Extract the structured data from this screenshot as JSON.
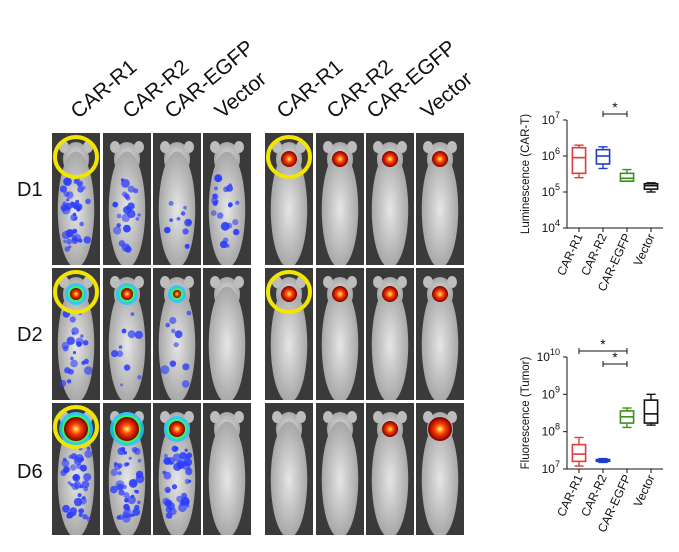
{
  "figure": {
    "left_panel": {
      "column_labels": [
        "CAR-R1",
        "CAR-R2",
        "CAR-EGFP",
        "Vector"
      ],
      "row_labels": [
        "D1",
        "D2",
        "D6"
      ]
    },
    "right_panel": {
      "column_labels": [
        "CAR-R1",
        "CAR-R2",
        "CAR-EGFP",
        "Vector"
      ]
    }
  },
  "colors": {
    "highlight_circle": "#f2e600",
    "luminescence_blue": "#2a3cff",
    "tumor_hot": "#ff3a00"
  },
  "chart_data": [
    {
      "type": "boxplot",
      "ylabel": "Luminescence (CAR-T)",
      "yscale": "log",
      "ylim": [
        10000,
        10000000
      ],
      "yticks": [
        "10^4",
        "10^5",
        "10^6",
        "10^7"
      ],
      "categories": [
        "CAR-R1",
        "CAR-R2",
        "CAR-EGFP",
        "Vector"
      ],
      "boxes": [
        {
          "name": "CAR-R1",
          "color": "#e23b3b",
          "min": 250000,
          "q1": 330000,
          "median": 900000,
          "q3": 1700000,
          "max": 2000000
        },
        {
          "name": "CAR-R2",
          "color": "#1f3fc8",
          "min": 450000,
          "q1": 600000,
          "median": 1000000,
          "q3": 1500000,
          "max": 1800000
        },
        {
          "name": "CAR-EGFP",
          "color": "#3f8f1f",
          "min": 200000,
          "q1": 200000,
          "median": 240000,
          "q3": 330000,
          "max": 420000
        },
        {
          "name": "Vector",
          "color": "#111111",
          "min": 100000,
          "q1": 120000,
          "median": 150000,
          "q3": 170000,
          "max": 180000
        }
      ],
      "significance": [
        {
          "from": "CAR-R2",
          "to": "CAR-EGFP",
          "label": "*"
        }
      ]
    },
    {
      "type": "boxplot",
      "ylabel": "Fluorescence (Tumor)",
      "yscale": "log",
      "ylim": [
        10000000,
        10000000000
      ],
      "yticks": [
        "10^7",
        "10^8",
        "10^9",
        "10^10"
      ],
      "categories": [
        "CAR-R1",
        "CAR-R2",
        "CAR-EGFP",
        "Vector"
      ],
      "boxes": [
        {
          "name": "CAR-R1",
          "color": "#e23b3b",
          "min": 12000000,
          "q1": 16000000,
          "median": 25000000,
          "q3": 45000000,
          "max": 70000000
        },
        {
          "name": "CAR-R2",
          "color": "#1f3fc8",
          "min": 15000000,
          "q1": 16000000,
          "median": 17000000,
          "q3": 18000000,
          "max": 19000000
        },
        {
          "name": "CAR-EGFP",
          "color": "#3f8f1f",
          "min": 130000000,
          "q1": 170000000,
          "median": 250000000,
          "q3": 360000000,
          "max": 430000000
        },
        {
          "name": "Vector",
          "color": "#111111",
          "min": 150000000,
          "q1": 170000000,
          "median": 300000000,
          "q3": 700000000,
          "max": 1000000000
        }
      ],
      "significance": [
        {
          "from": "CAR-R1",
          "to": "CAR-EGFP",
          "label": "*"
        },
        {
          "from": "CAR-R2",
          "to": "CAR-EGFP",
          "label": "*"
        }
      ]
    }
  ],
  "mouse_images": {
    "left": [
      [
        {
          "blue": "high",
          "hot": "none",
          "circle": true
        },
        {
          "blue": "mid",
          "hot": "none"
        },
        {
          "blue": "low",
          "hot": "none"
        },
        {
          "blue": "mid",
          "hot": "none"
        }
      ],
      [
        {
          "blue": "mid",
          "hot": "small",
          "circle": true
        },
        {
          "blue": "low",
          "hot": "small"
        },
        {
          "blue": "low",
          "hot": "tiny"
        },
        {
          "blue": "none",
          "hot": "none"
        }
      ],
      [
        {
          "blue": "high",
          "hot": "large",
          "circle": true
        },
        {
          "blue": "high",
          "hot": "large"
        },
        {
          "blue": "high",
          "hot": "medium"
        },
        {
          "blue": "none",
          "hot": "none"
        }
      ]
    ],
    "right": [
      [
        {
          "hot": "medium",
          "circle": true
        },
        {
          "hot": "medium"
        },
        {
          "hot": "medium"
        },
        {
          "hot": "medium"
        }
      ],
      [
        {
          "hot": "medium",
          "circle": true
        },
        {
          "hot": "medium"
        },
        {
          "hot": "medium"
        },
        {
          "hot": "medium"
        }
      ],
      [
        {
          "hot": "none"
        },
        {
          "hot": "none"
        },
        {
          "hot": "medium"
        },
        {
          "hot": "large"
        }
      ]
    ]
  }
}
